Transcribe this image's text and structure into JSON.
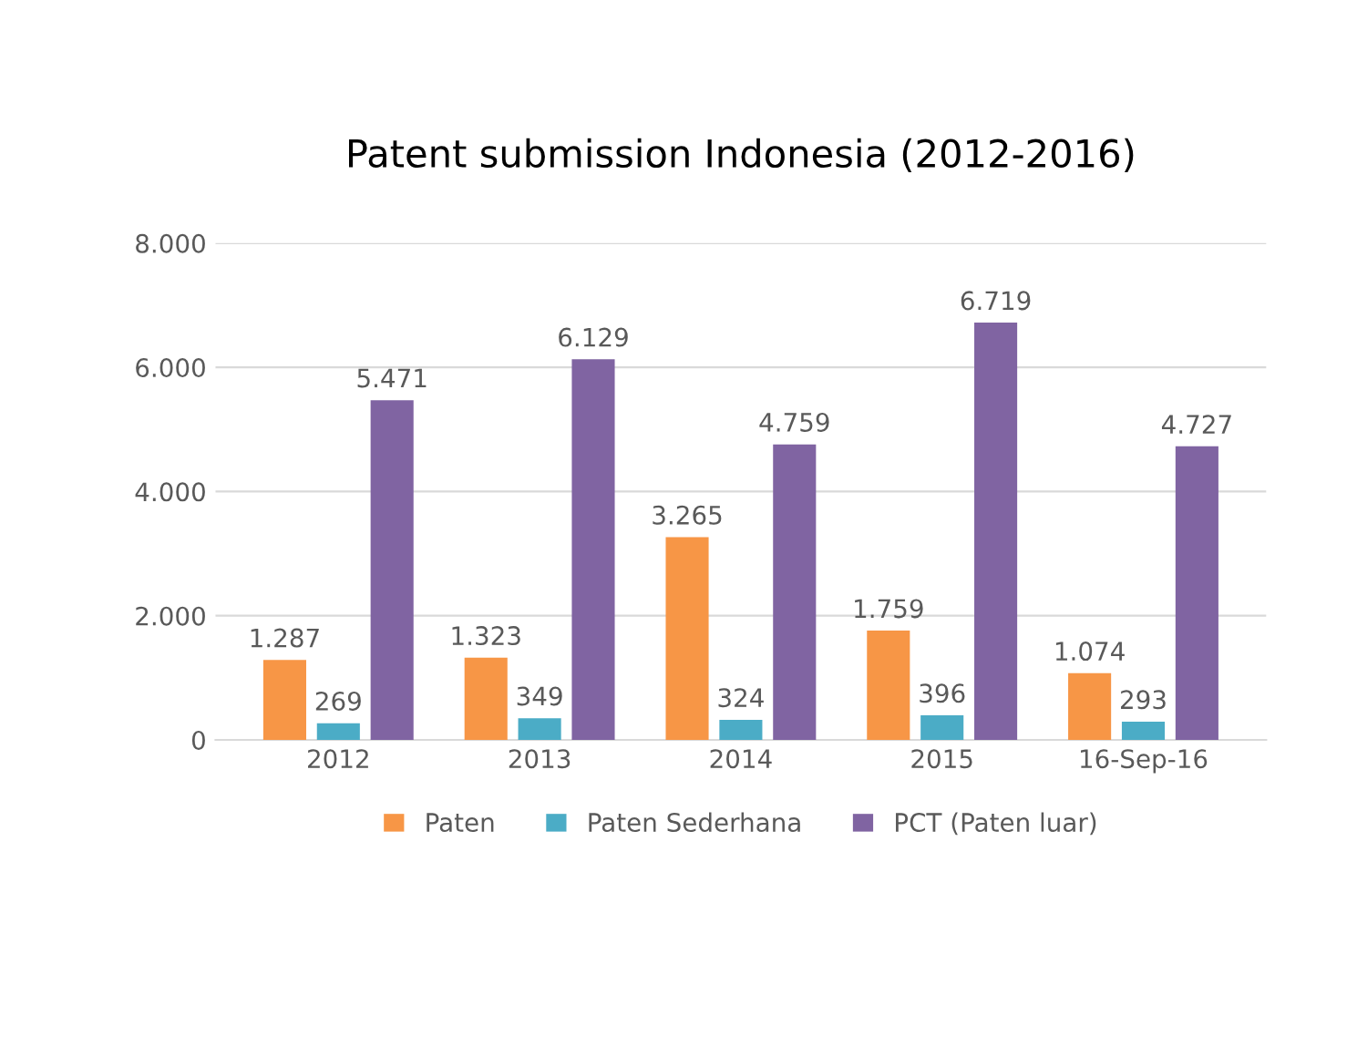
{
  "chart_data": {
    "type": "bar",
    "title": "Patent submission Indonesia (2012-2016)",
    "categories": [
      "2012",
      "2013",
      "2014",
      "2015",
      "16-Sep-16"
    ],
    "series": [
      {
        "name": "Paten",
        "color": "#f79646",
        "values": [
          1287,
          1323,
          3265,
          1759,
          1074
        ],
        "value_labels": [
          "1.287",
          "1.323",
          "3.265",
          "1.759",
          "1.074"
        ]
      },
      {
        "name": "Paten Sederhana",
        "color": "#4bacc6",
        "values": [
          269,
          349,
          324,
          396,
          293
        ],
        "value_labels": [
          "269",
          "349",
          "324",
          "396",
          "293"
        ]
      },
      {
        "name": "PCT (Paten luar)",
        "color": "#8064a2",
        "values": [
          5471,
          6129,
          4759,
          6719,
          4727
        ],
        "value_labels": [
          "5.471",
          "6.129",
          "4.759",
          "6.719",
          "4.727"
        ]
      }
    ],
    "ylim": [
      0,
      8000
    ],
    "yticks": [
      {
        "value": 0,
        "label": "0"
      },
      {
        "value": 2000,
        "label": "2.000"
      },
      {
        "value": 4000,
        "label": "4.000"
      },
      {
        "value": 6000,
        "label": "6.000"
      },
      {
        "value": 8000,
        "label": "8.000"
      }
    ],
    "grid": "y",
    "legend": "bottom"
  }
}
